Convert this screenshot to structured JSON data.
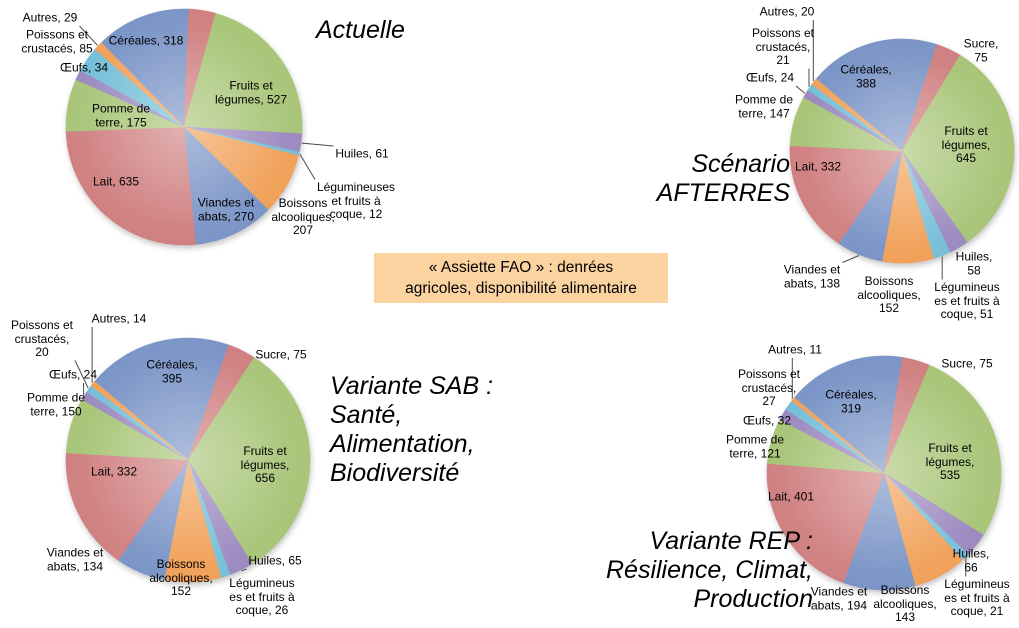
{
  "center_note": {
    "text": "« Assiette FAO » : denrées\nagricoles, disponibilité alimentaire",
    "bg_color": "#FAD3A1"
  },
  "palette": [
    "#7B95C7",
    "#D08081",
    "#A8C578",
    "#9C8AC0",
    "#76BFD8",
    "#F1A159"
  ],
  "chart_data": [
    {
      "type": "pie",
      "title": "Actuelle",
      "slices": [
        {
          "category": "Céréales",
          "value": 318,
          "label_text": "Céréales, 318"
        },
        {
          "category": "(non étiqueté)",
          "value": 90,
          "estimated": true,
          "label_text": ""
        },
        {
          "category": "Fruits et légumes",
          "value": 527,
          "label_text": "Fruits et\nlégumes, 527"
        },
        {
          "category": "Huiles",
          "value": 61,
          "label_text": "Huiles, 61"
        },
        {
          "category": "Légumineuses et fruits à coque",
          "value": 12,
          "label_text": "Légumineuses\net fruits à\ncoque, 12"
        },
        {
          "category": "Boissons alcooliques",
          "value": 207,
          "label_text": "Boissons\nalcooliques,\n207"
        },
        {
          "category": "Viandes et abats",
          "value": 270,
          "label_text": "Viandes et\nabats, 270"
        },
        {
          "category": "Lait",
          "value": 635,
          "label_text": "Lait, 635"
        },
        {
          "category": "Pomme de terre",
          "value": 175,
          "label_text": "Pomme de\nterre, 175"
        },
        {
          "category": "Œufs",
          "value": 34,
          "label_text": "Œufs, 34"
        },
        {
          "category": "Poissons et crustacés",
          "value": 85,
          "label_text": "Poissons et\ncrustacés, 85"
        },
        {
          "category": "Autres",
          "value": 29,
          "label_text": "Autres, 29"
        }
      ]
    },
    {
      "type": "pie",
      "title": "Scénario\nAFTERRES",
      "slices": [
        {
          "category": "Céréales",
          "value": 388,
          "label_text": "Céréales,\n388"
        },
        {
          "category": "Sucre",
          "value": 75,
          "label_text": "Sucre, 75"
        },
        {
          "category": "Fruits et légumes",
          "value": 645,
          "label_text": "Fruits et\nlégumes,\n645"
        },
        {
          "category": "Huiles",
          "value": 58,
          "label_text": "Huiles, 58"
        },
        {
          "category": "Légumineuses et fruits à coque",
          "value": 51,
          "label_text": "Légumineus\nes et fruits à\ncoque, 51"
        },
        {
          "category": "Boissons alcooliques",
          "value": 152,
          "label_text": "Boissons\nalcooliques,\n152"
        },
        {
          "category": "Viandes et abats",
          "value": 138,
          "label_text": "Viandes et\nabats, 138"
        },
        {
          "category": "Lait",
          "value": 332,
          "label_text": "Lait, 332"
        },
        {
          "category": "Pomme de terre",
          "value": 147,
          "label_text": "Pomme de\nterre, 147"
        },
        {
          "category": "Œufs",
          "value": 24,
          "label_text": "Œufs, 24"
        },
        {
          "category": "Poissons et crustacés",
          "value": 21,
          "label_text": "Poissons et\ncrustacés,\n21"
        },
        {
          "category": "Autres",
          "value": 20,
          "label_text": "Autres, 20"
        }
      ]
    },
    {
      "type": "pie",
      "title": "Variante SAB :\nSanté,\nAlimentation,\nBiodiversité",
      "slices": [
        {
          "category": "Céréales",
          "value": 395,
          "label_text": "Céréales,\n395"
        },
        {
          "category": "Sucre",
          "value": 75,
          "label_text": "Sucre, 75"
        },
        {
          "category": "Fruits et légumes",
          "value": 656,
          "label_text": "Fruits et\nlégumes,\n656"
        },
        {
          "category": "Huiles",
          "value": 65,
          "label_text": "Huiles, 65"
        },
        {
          "category": "Légumineuses et fruits à coque",
          "value": 26,
          "label_text": "Légumineus\nes et fruits à\ncoque, 26"
        },
        {
          "category": "Boissons alcooliques",
          "value": 152,
          "label_text": "Boissons\nalcooliques,\n152"
        },
        {
          "category": "Viandes et abats",
          "value": 134,
          "label_text": "Viandes et\nabats, 134"
        },
        {
          "category": "Lait",
          "value": 332,
          "label_text": "Lait, 332"
        },
        {
          "category": "Pomme de terre",
          "value": 150,
          "label_text": "Pomme de\nterre, 150"
        },
        {
          "category": "Œufs",
          "value": 24,
          "label_text": "Œufs, 24"
        },
        {
          "category": "Poissons et crustacés",
          "value": 20,
          "label_text": "Poissons et\ncrustacés,\n20"
        },
        {
          "category": "Autres",
          "value": 14,
          "label_text": "Autres, 14"
        }
      ]
    },
    {
      "type": "pie",
      "title": "Variante REP :\nRésilience, Climat,\nProduction",
      "slices": [
        {
          "category": "Céréales",
          "value": 319,
          "label_text": "Céréales,\n319"
        },
        {
          "category": "Sucre",
          "value": 75,
          "label_text": "Sucre, 75"
        },
        {
          "category": "Fruits et légumes",
          "value": 535,
          "label_text": "Fruits et\nlégumes,\n535"
        },
        {
          "category": "Huiles",
          "value": 66,
          "label_text": "Huiles, 66"
        },
        {
          "category": "Légumineuses et fruits à coque",
          "value": 21,
          "label_text": "Légumineus\nes et fruits à\ncoque, 21"
        },
        {
          "category": "Boissons alcooliques",
          "value": 143,
          "label_text": "Boissons\nalcooliques,\n143"
        },
        {
          "category": "Viandes et abats",
          "value": 194,
          "label_text": "Viandes et\nabats, 194"
        },
        {
          "category": "Lait",
          "value": 401,
          "label_text": "Lait, 401"
        },
        {
          "category": "Pomme de terre",
          "value": 121,
          "label_text": "Pomme de\nterre, 121"
        },
        {
          "category": "Œufs",
          "value": 32,
          "label_text": "Œufs, 32"
        },
        {
          "category": "Poissons et crustacés",
          "value": 27,
          "label_text": "Poissons et\ncrustacés,\n27"
        },
        {
          "category": "Autres",
          "value": 11,
          "label_text": "Autres, 11"
        }
      ]
    }
  ]
}
